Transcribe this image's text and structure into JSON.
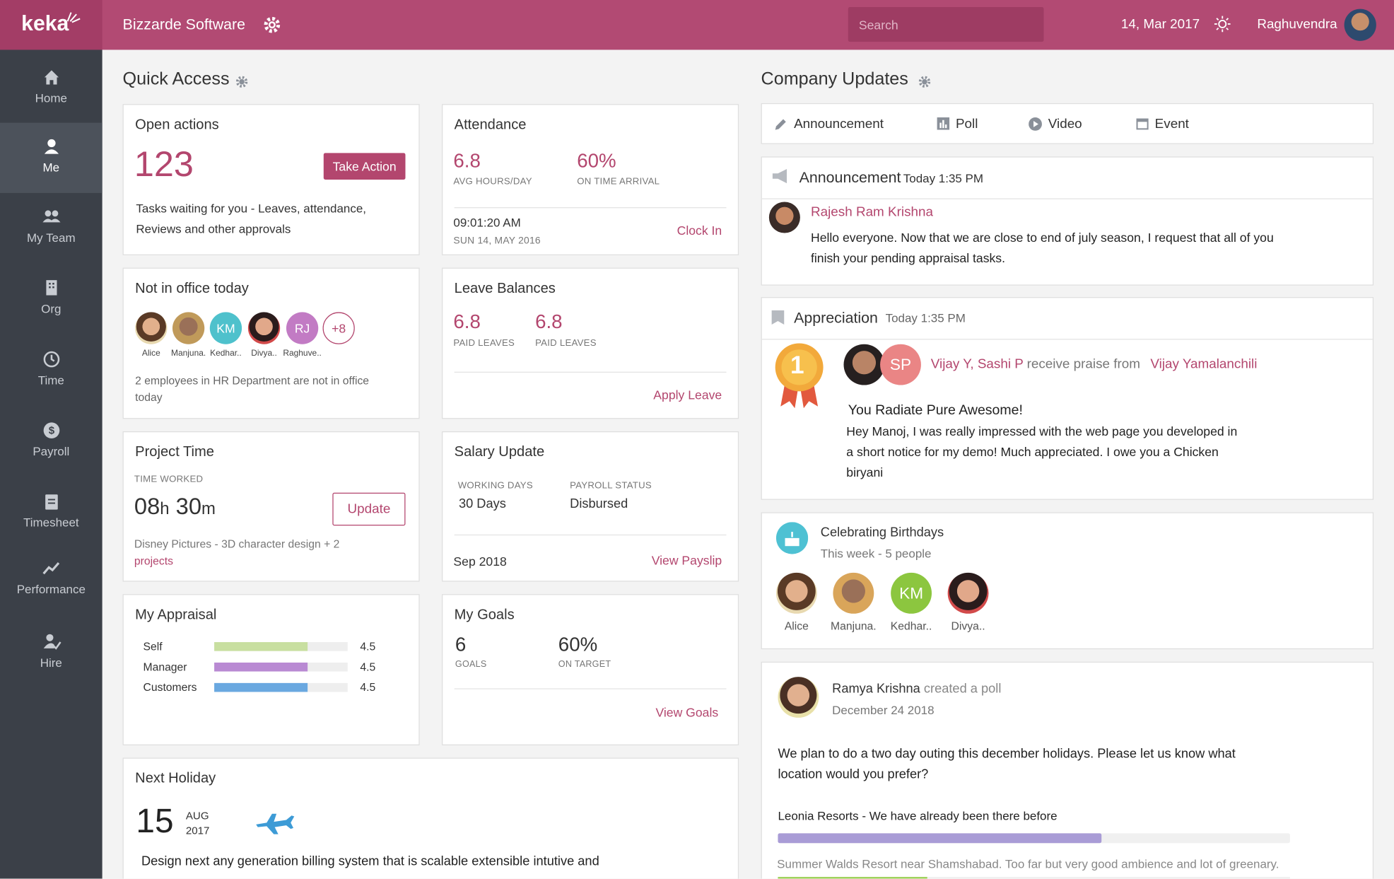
{
  "app": {
    "logo": "keka",
    "company": "Bizzarde Software",
    "search": "Search",
    "date": "14, Mar 2017",
    "user": "Raghuvendra"
  },
  "nav": [
    "Home",
    "Me",
    "My Team",
    "Org",
    "Time",
    "Payroll",
    "Timesheet",
    "Performance",
    "Hire"
  ],
  "quick_access": {
    "title": "Quick Access",
    "open_actions": {
      "title": "Open actions",
      "count": 123,
      "button": "Take Action",
      "text": "Tasks waiting for you -  Leaves, attendance, Reviews and other approvals"
    },
    "not_in_office": {
      "title": "Not in office today",
      "people": [
        {
          "name": "Alice"
        },
        {
          "name": "Manjuna."
        },
        {
          "initials": "KM",
          "name": "Kedhar.."
        },
        {
          "name": "Divya.."
        },
        {
          "initials": "RJ",
          "name": "Raghuve.."
        }
      ],
      "more": "+8",
      "text": "2 employees in HR Department are not in office today"
    },
    "project_time": {
      "title": "Project Time",
      "label": "TIME WORKED",
      "hours": "08",
      "hours_unit": "h",
      "minutes": 30,
      "minutes_unit": "m",
      "button": "Update",
      "description": "Disney Pictures - 3D character design + 2",
      "link": "projects"
    },
    "appraisal": {
      "title": "My Appraisal",
      "rows": [
        {
          "label": "Self",
          "value": 4.5
        },
        {
          "label": "Manager",
          "value": 4.5
        },
        {
          "label": "Customers",
          "value": 4.5
        }
      ]
    },
    "attendance": {
      "title": "Attendance",
      "avg": 6.8,
      "avg_label": "AVG HOURS/DAY",
      "on_time": "60%",
      "on_time_label": "ON TIME ARRIVAL",
      "time": "09:01:20 AM",
      "date": "SUN 14, MAY 2016",
      "action": "Clock In"
    },
    "leave": {
      "title": "Leave Balances",
      "balances": [
        {
          "value": 6.8,
          "label": "PAID LEAVES"
        },
        {
          "value": 6.8,
          "label": "PAID LEAVES"
        }
      ],
      "action": "Apply Leave"
    },
    "salary": {
      "title": "Salary Update",
      "working_days_label": "WORKING DAYS",
      "working_days": "30 Days",
      "status_label": "PAYROLL STATUS",
      "status": "Disbursed",
      "month": "Sep 2018",
      "action": "View Payslip"
    },
    "goals": {
      "title": "My Goals",
      "goals": 6,
      "goals_label": "GOALS",
      "on_target": "60%",
      "on_target_label": "ON TARGET",
      "action": "View Goals"
    },
    "holiday": {
      "title": "Next Holiday",
      "day": 15,
      "month": "AUG",
      "year": 2017,
      "description": "Design next any generation billing system that is scalable extensible intutive and"
    }
  },
  "company_updates": {
    "title": "Company Updates",
    "tabs": [
      "Announcement",
      "Poll",
      "Video",
      "Event"
    ],
    "announcement": {
      "type": "Announcement",
      "time": "Today 1:35 PM",
      "author": "Rajesh Ram Krishna",
      "text": "Hello everyone. Now that we are close to end of july season, I request that all of you finish your pending appraisal tasks."
    },
    "appreciation": {
      "type": "Appreciation",
      "time": "Today 1:35 PM",
      "rank": 1,
      "recipients": "Vijay Y, Sashi P",
      "recipient_initials": "SP",
      "verb": "receive praise from",
      "giver": "Vijay Yamalanchili",
      "headline": "You Radiate Pure Awesome!",
      "text": "Hey Manoj, I was really impressed with the web page you developed in a short notice for my demo! Much appreciated. I owe you a Chicken biryani"
    },
    "birthdays": {
      "title": "Celebrating Birthdays",
      "subtitle": "This week - 5 people",
      "people": [
        {
          "name": "Alice"
        },
        {
          "name": "Manjuna."
        },
        {
          "initials": "KM",
          "name": "Kedhar.."
        },
        {
          "name": "Divya.."
        }
      ]
    },
    "poll": {
      "author": "Ramya Krishna",
      "action": "created a poll",
      "date": "December 24 2018",
      "question": "We plan to do a two day outing this december holidays. Please let us know what location would you prefer?",
      "options": [
        "Leonia Resorts - We have already been there before",
        "Summer Walds Resort near Shamshabad. Too far but very good ambience and lot of greenary."
      ]
    }
  }
}
